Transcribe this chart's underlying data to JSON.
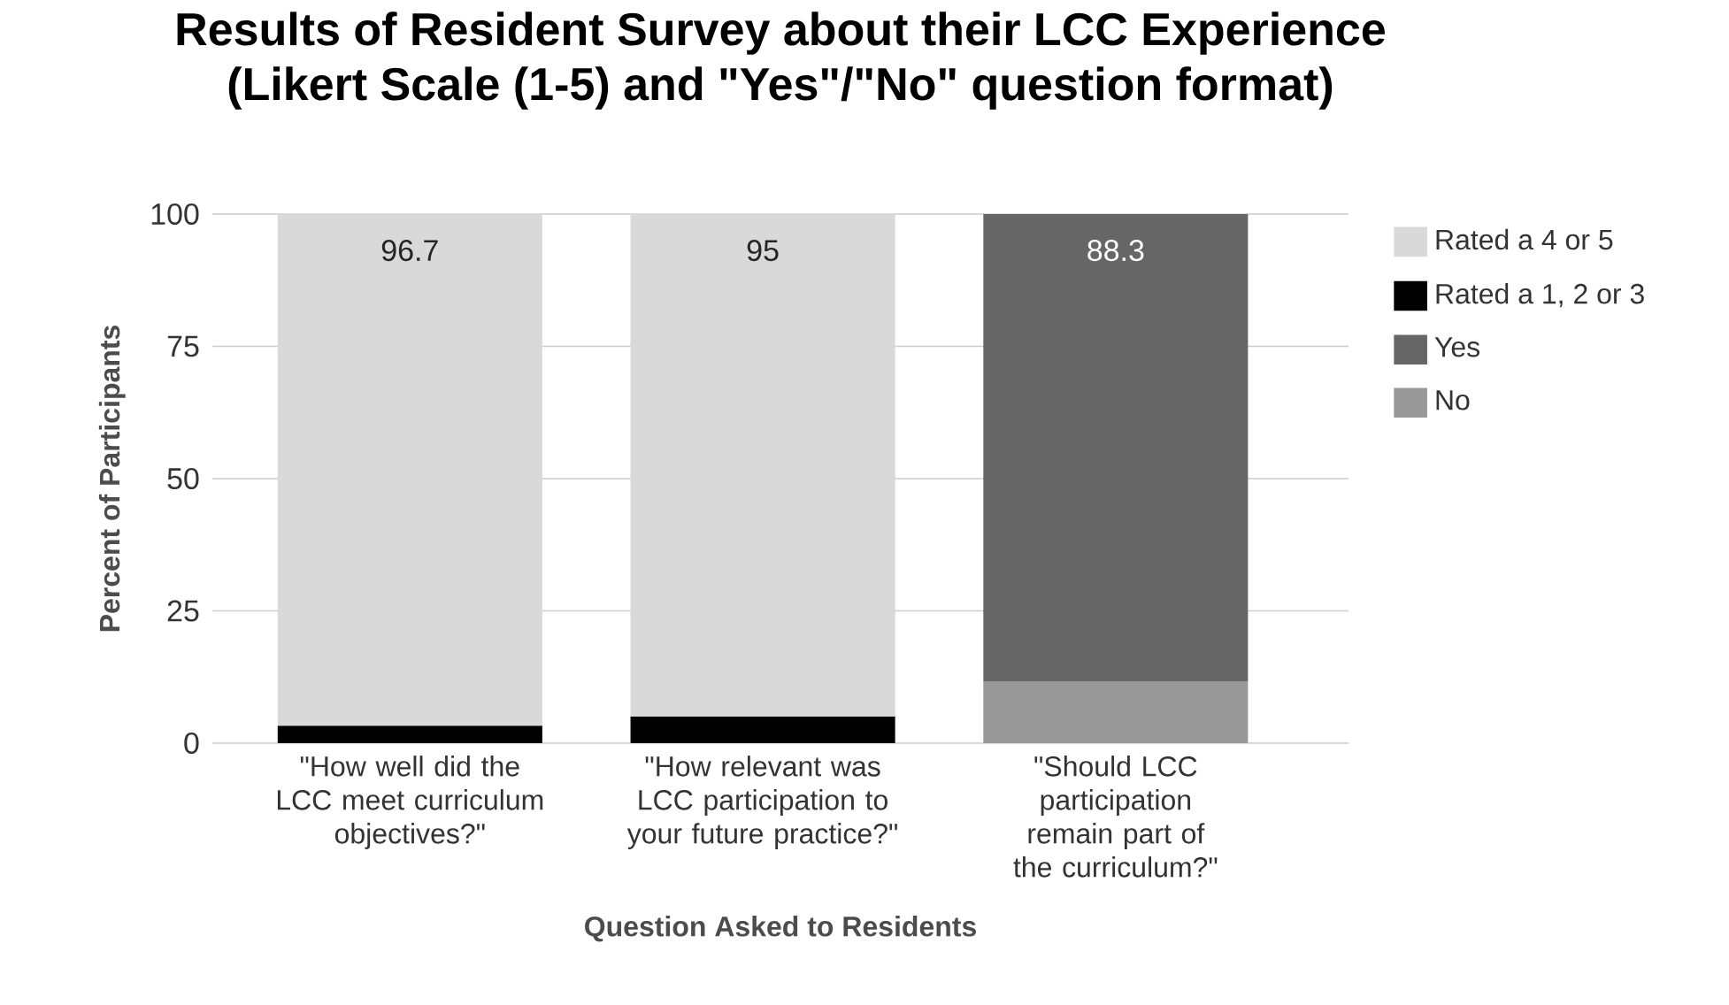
{
  "chart_data": {
    "type": "bar",
    "title": "Results of Resident Survey about their LCC Experience\n(Likert Scale (1-5) and \"Yes\"/\"No\" question format)",
    "xlabel": "Question Asked to Residents",
    "ylabel": "Percent of Participants",
    "categories": [
      "\"How well did the LCC meet curriculum objectives?\"",
      "\"How relevant was LCC participation to your future practice?\"",
      "\"Should LCC participation remain part of the curriculum?\""
    ],
    "stacked": true,
    "ylim": [
      0,
      100
    ],
    "yticks": [
      0,
      25,
      50,
      75,
      100
    ],
    "grid": "y",
    "legend": "top right",
    "series": [
      {
        "name": "No",
        "color": "#999999",
        "values": [
          null,
          null,
          11.7
        ]
      },
      {
        "name": "Yes",
        "color": "#666666",
        "values": [
          null,
          null,
          88.3
        ],
        "value_labels": [
          null,
          null,
          "88.3"
        ]
      },
      {
        "name": "Rated a 1, 2 or 3",
        "color": "#000000",
        "values": [
          3.3,
          5,
          null
        ]
      },
      {
        "name": "Rated a 4 or 5",
        "color": "#d9d9d9",
        "values": [
          96.7,
          95,
          null
        ],
        "value_labels": [
          "96.7",
          "95",
          null
        ]
      }
    ]
  }
}
